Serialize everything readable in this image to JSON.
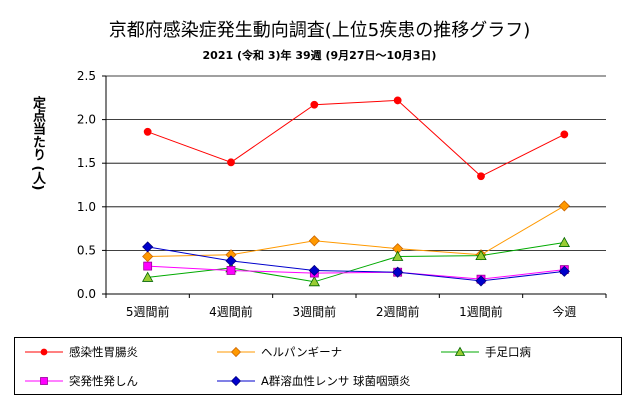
{
  "title": "京都府感染症発生動向調査(上位5疾患の推移グラフ)",
  "subtitle": "2021 (令和 3)年 39週 (9月27日～10月3日)",
  "chart_data": {
    "type": "line",
    "title": "京都府感染症発生動向調査(上位5疾患の推移グラフ)",
    "subtitle": "2021 (令和 3)年 39週 (9月27日～10月3日)",
    "ylabel": "定点当たり (人)",
    "xlabel": "",
    "categories": [
      "5週間前",
      "4週間前",
      "3週間前",
      "2週間前",
      "1週間前",
      "今週"
    ],
    "ylim": [
      0,
      2.5
    ],
    "yticks": [
      "0.0",
      "0.5",
      "1.0",
      "1.5",
      "2.0",
      "2.5"
    ],
    "grid": true,
    "legend_position": "bottom",
    "series": [
      {
        "name": "感染性胃腸炎",
        "color": "#ff0000",
        "marker": "circle",
        "values": [
          1.86,
          1.51,
          2.17,
          2.22,
          1.35,
          1.83
        ]
      },
      {
        "name": "ヘルパンギーナ",
        "color": "#ff9900",
        "marker": "diamond",
        "values": [
          0.43,
          0.45,
          0.61,
          0.52,
          0.45,
          1.01
        ]
      },
      {
        "name": "手足口病",
        "color": "#00aa00",
        "marker": "triangle",
        "values": [
          0.19,
          0.3,
          0.14,
          0.43,
          0.44,
          0.59
        ]
      },
      {
        "name": "突発性発しん",
        "color": "#ff00ff",
        "marker": "square",
        "values": [
          0.32,
          0.27,
          0.24,
          0.25,
          0.17,
          0.28
        ]
      },
      {
        "name": "A群溶血性レンサ 球菌咽頭炎",
        "color": "#0000cc",
        "marker": "diamond",
        "values": [
          0.54,
          0.38,
          0.27,
          0.25,
          0.15,
          0.26
        ]
      }
    ]
  }
}
